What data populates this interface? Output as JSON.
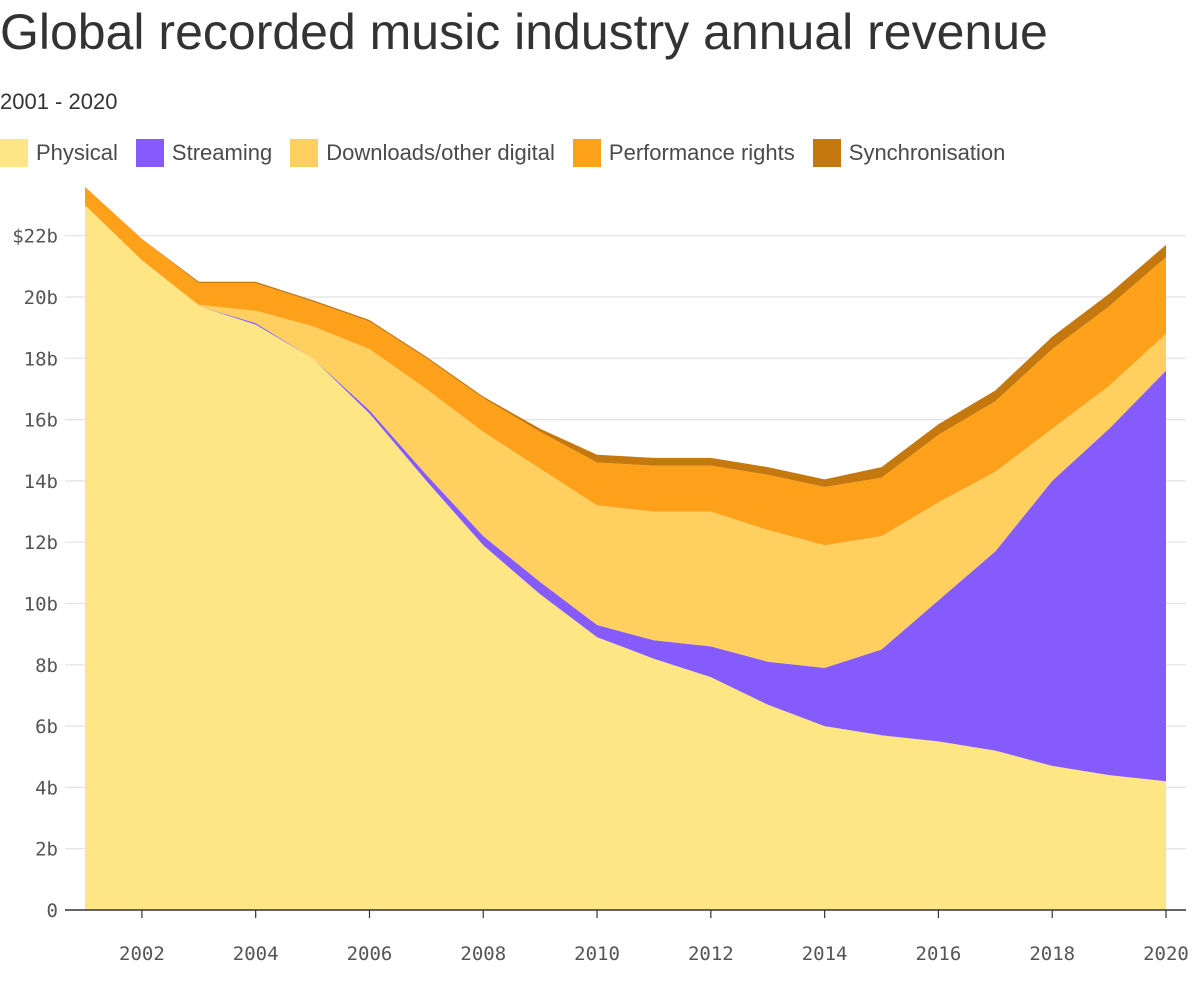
{
  "chart_data": {
    "type": "area",
    "stacked": true,
    "title": "Global recorded music industry annual revenue",
    "subtitle": "2001 - 2020",
    "x": [
      2001,
      2002,
      2003,
      2004,
      2005,
      2006,
      2007,
      2008,
      2009,
      2010,
      2011,
      2012,
      2013,
      2014,
      2015,
      2016,
      2017,
      2018,
      2019,
      2020
    ],
    "xticks": [
      "2002",
      "2004",
      "2006",
      "2008",
      "2010",
      "2012",
      "2014",
      "2016",
      "2018",
      "2020"
    ],
    "yticks": [
      "0",
      "2b",
      "4b",
      "6b",
      "8b",
      "10b",
      "12b",
      "14b",
      "16b",
      "18b",
      "20b",
      "$22b"
    ],
    "ylim": [
      0,
      23.6
    ],
    "grid": true,
    "legend_position": "top",
    "series": [
      {
        "name": "Physical",
        "color": "#fee685",
        "values": [
          23.0,
          21.2,
          19.7,
          19.1,
          18.0,
          16.2,
          14.0,
          11.9,
          10.3,
          8.9,
          8.2,
          7.6,
          6.7,
          6.0,
          5.7,
          5.5,
          5.2,
          4.7,
          4.4,
          4.2
        ]
      },
      {
        "name": "Streaming",
        "color": "#855bfb",
        "values": [
          0.0,
          0.0,
          0.0,
          0.05,
          0.0,
          0.1,
          0.2,
          0.3,
          0.4,
          0.4,
          0.6,
          1.0,
          1.4,
          1.9,
          2.8,
          4.6,
          6.5,
          9.3,
          11.3,
          13.4
        ]
      },
      {
        "name": "Downloads/other digital",
        "color": "#ffcf60",
        "values": [
          0.0,
          0.0,
          0.05,
          0.4,
          1.05,
          2.0,
          2.8,
          3.4,
          3.7,
          3.9,
          4.2,
          4.4,
          4.3,
          4.0,
          3.7,
          3.2,
          2.6,
          1.7,
          1.4,
          1.2
        ]
      },
      {
        "name": "Performance rights",
        "color": "#fea11a",
        "values": [
          0.6,
          0.7,
          0.7,
          0.9,
          0.8,
          0.9,
          1.0,
          1.1,
          1.2,
          1.4,
          1.5,
          1.5,
          1.8,
          1.9,
          1.9,
          2.2,
          2.3,
          2.6,
          2.6,
          2.5
        ]
      },
      {
        "name": "Synchronisation",
        "color": "#c4780e",
        "values": [
          0.0,
          0.0,
          0.05,
          0.05,
          0.05,
          0.05,
          0.05,
          0.05,
          0.1,
          0.25,
          0.25,
          0.25,
          0.25,
          0.25,
          0.35,
          0.35,
          0.35,
          0.4,
          0.4,
          0.4
        ]
      }
    ]
  }
}
